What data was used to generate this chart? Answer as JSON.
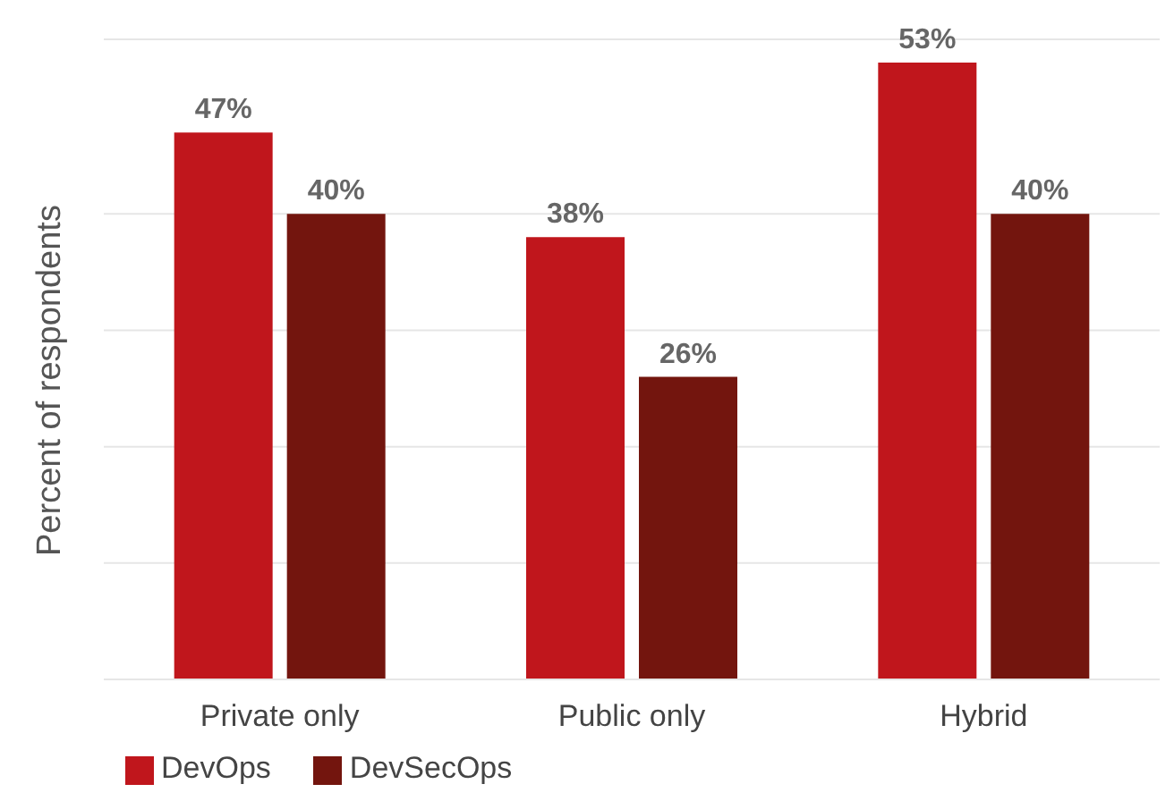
{
  "chart_data": {
    "type": "bar",
    "ylabel": "Percent of respondents",
    "categories": [
      "Private only",
      "Public only",
      "Hybrid"
    ],
    "series": [
      {
        "name": "DevOps",
        "color": "#c0161c",
        "values": [
          47,
          38,
          53
        ],
        "value_labels": [
          "47%",
          "38%",
          "53%"
        ]
      },
      {
        "name": "DevSecOps",
        "color": "#73150e",
        "values": [
          40,
          26,
          40
        ],
        "value_labels": [
          "40%",
          "26%",
          "40%"
        ]
      }
    ],
    "ylim": [
      0,
      55
    ],
    "yticks": [
      {
        "value": 0,
        "label": null
      },
      {
        "value": 10,
        "label": null
      },
      {
        "value": 20,
        "label": null
      },
      {
        "value": 30,
        "label": null
      },
      {
        "value": 40,
        "label": null
      }
    ],
    "grid": "y",
    "legend": "bottom left"
  }
}
